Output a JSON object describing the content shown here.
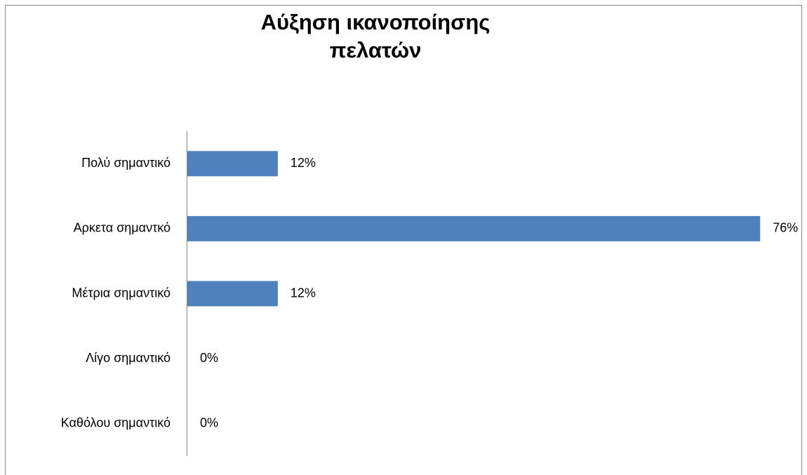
{
  "chart_data": {
    "type": "bar",
    "orientation": "horizontal",
    "title": "Αύξηση ικανοποίησης πελατών",
    "categories": [
      "Πολύ σημαντικό",
      "Αρκετα σημαντκό",
      "Μέτρια σημαντικό",
      "Λίγο σημαντικό",
      "Καθόλου σημαντικό"
    ],
    "values": [
      12,
      76,
      12,
      0,
      0
    ],
    "value_labels": [
      "12%",
      "76%",
      "12%",
      "0%",
      "0%"
    ],
    "color": "#4f81bd"
  }
}
